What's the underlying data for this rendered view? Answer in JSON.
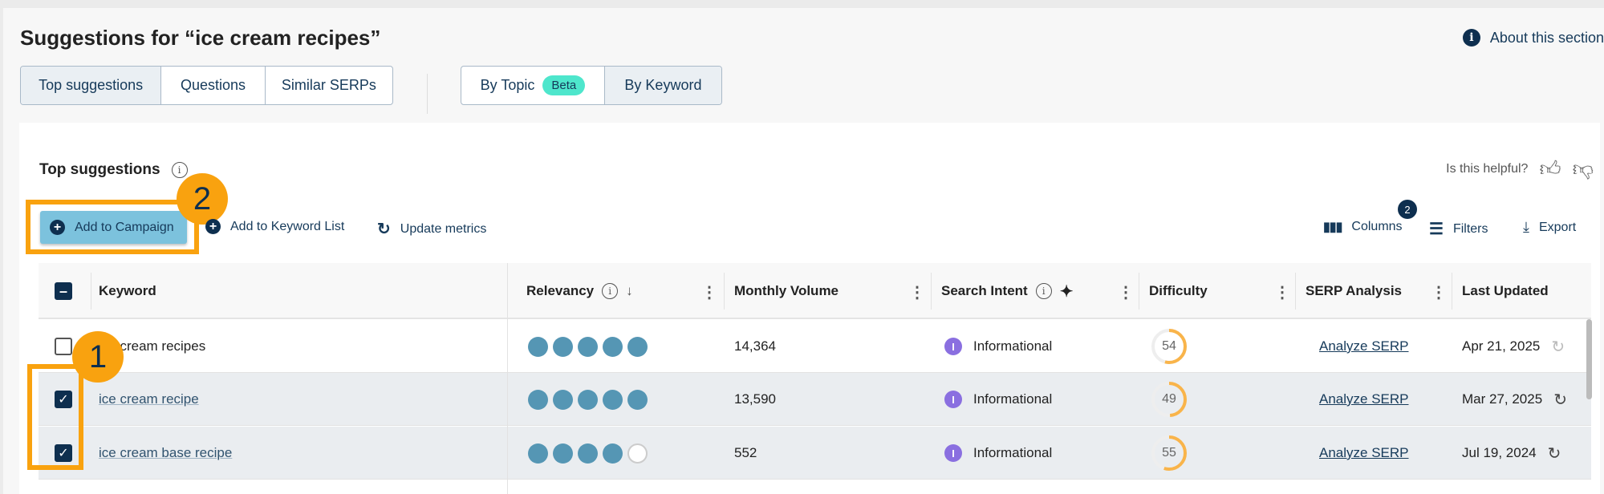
{
  "header": {
    "title": "Suggestions for “ice cream recipes”",
    "about": "About this section"
  },
  "tabs": [
    {
      "label": "Top suggestions",
      "selected": true
    },
    {
      "label": "Questions",
      "selected": false
    },
    {
      "label": "Similar SERPs",
      "selected": false
    }
  ],
  "view_toggle": {
    "by_topic": "By Topic",
    "beta": "Beta",
    "by_keyword": "By Keyword",
    "selected": "By Keyword"
  },
  "card": {
    "title": "Top suggestions",
    "helpful": "Is this helpful?"
  },
  "toolbar": {
    "add_campaign": "Add to Campaign",
    "add_list": "Add to Keyword List",
    "update": "Update metrics",
    "columns": "Columns",
    "columns_count": "2",
    "filters": "Filters",
    "export": "Export"
  },
  "annotations": {
    "step1": "1",
    "step2": "2",
    "color": "#f9a20f"
  },
  "table": {
    "headers": {
      "keyword": "Keyword",
      "relevancy": "Relevancy",
      "volume": "Monthly Volume",
      "intent": "Search Intent",
      "difficulty": "Difficulty",
      "serp": "SERP Analysis",
      "updated": "Last Updated"
    },
    "rows": [
      {
        "keyword": "ice cream recipes",
        "checked": false,
        "relevancy": 5,
        "volume": "14,364",
        "intent": "Informational",
        "intent_letter": "I",
        "difficulty": "54",
        "serp": "Analyze SERP",
        "updated": "Apr 21, 2025"
      },
      {
        "keyword": "ice cream recipe",
        "checked": true,
        "relevancy": 5,
        "volume": "13,590",
        "intent": "Informational",
        "intent_letter": "I",
        "difficulty": "49",
        "serp": "Analyze SERP",
        "updated": "Mar 27, 2025"
      },
      {
        "keyword": "ice cream base recipe",
        "checked": true,
        "relevancy": 4,
        "volume": "552",
        "intent": "Informational",
        "intent_letter": "I",
        "difficulty": "55",
        "serp": "Analyze SERP",
        "updated": "Jul 19, 2024"
      }
    ]
  },
  "colors": {
    "primary": "#0e2f4f",
    "relevancy": "#5596b4",
    "intent": "#8a6fe0",
    "difficulty": "#f9b44a",
    "beta": "#4ee6cc"
  }
}
